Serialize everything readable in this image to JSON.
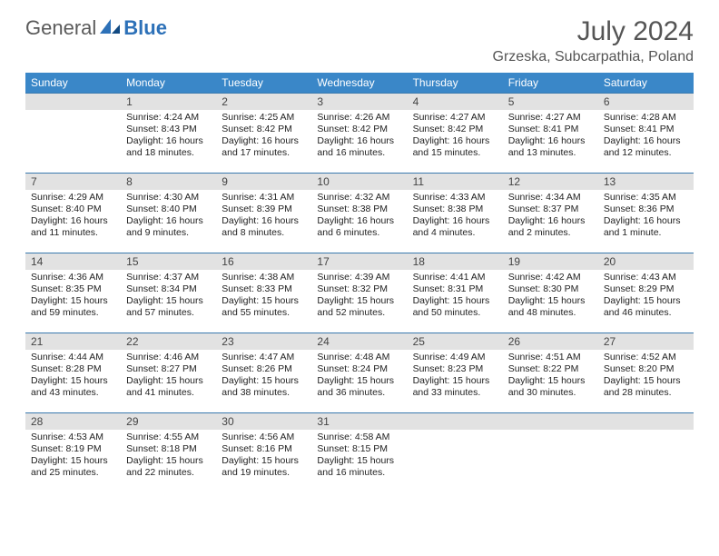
{
  "logo": {
    "general": "General",
    "blue": "Blue"
  },
  "title": "July 2024",
  "location": "Grzeska, Subcarpathia, Poland",
  "colors": {
    "header_bg": "#3a87c8",
    "header_fg": "#ffffff",
    "daynum_bg": "#e2e2e2",
    "row_divider": "#3a7aaf",
    "logo_blue": "#2d71b8",
    "text": "#222222"
  },
  "typography": {
    "title_size_pt": 22,
    "location_size_pt": 12,
    "weekday_size_pt": 9,
    "cell_size_pt": 8
  },
  "weekdays": [
    "Sunday",
    "Monday",
    "Tuesday",
    "Wednesday",
    "Thursday",
    "Friday",
    "Saturday"
  ],
  "weeks": [
    [
      null,
      {
        "n": "1",
        "sr": "4:24 AM",
        "ss": "8:43 PM",
        "dl": "16 hours and 18 minutes."
      },
      {
        "n": "2",
        "sr": "4:25 AM",
        "ss": "8:42 PM",
        "dl": "16 hours and 17 minutes."
      },
      {
        "n": "3",
        "sr": "4:26 AM",
        "ss": "8:42 PM",
        "dl": "16 hours and 16 minutes."
      },
      {
        "n": "4",
        "sr": "4:27 AM",
        "ss": "8:42 PM",
        "dl": "16 hours and 15 minutes."
      },
      {
        "n": "5",
        "sr": "4:27 AM",
        "ss": "8:41 PM",
        "dl": "16 hours and 13 minutes."
      },
      {
        "n": "6",
        "sr": "4:28 AM",
        "ss": "8:41 PM",
        "dl": "16 hours and 12 minutes."
      }
    ],
    [
      {
        "n": "7",
        "sr": "4:29 AM",
        "ss": "8:40 PM",
        "dl": "16 hours and 11 minutes."
      },
      {
        "n": "8",
        "sr": "4:30 AM",
        "ss": "8:40 PM",
        "dl": "16 hours and 9 minutes."
      },
      {
        "n": "9",
        "sr": "4:31 AM",
        "ss": "8:39 PM",
        "dl": "16 hours and 8 minutes."
      },
      {
        "n": "10",
        "sr": "4:32 AM",
        "ss": "8:38 PM",
        "dl": "16 hours and 6 minutes."
      },
      {
        "n": "11",
        "sr": "4:33 AM",
        "ss": "8:38 PM",
        "dl": "16 hours and 4 minutes."
      },
      {
        "n": "12",
        "sr": "4:34 AM",
        "ss": "8:37 PM",
        "dl": "16 hours and 2 minutes."
      },
      {
        "n": "13",
        "sr": "4:35 AM",
        "ss": "8:36 PM",
        "dl": "16 hours and 1 minute."
      }
    ],
    [
      {
        "n": "14",
        "sr": "4:36 AM",
        "ss": "8:35 PM",
        "dl": "15 hours and 59 minutes."
      },
      {
        "n": "15",
        "sr": "4:37 AM",
        "ss": "8:34 PM",
        "dl": "15 hours and 57 minutes."
      },
      {
        "n": "16",
        "sr": "4:38 AM",
        "ss": "8:33 PM",
        "dl": "15 hours and 55 minutes."
      },
      {
        "n": "17",
        "sr": "4:39 AM",
        "ss": "8:32 PM",
        "dl": "15 hours and 52 minutes."
      },
      {
        "n": "18",
        "sr": "4:41 AM",
        "ss": "8:31 PM",
        "dl": "15 hours and 50 minutes."
      },
      {
        "n": "19",
        "sr": "4:42 AM",
        "ss": "8:30 PM",
        "dl": "15 hours and 48 minutes."
      },
      {
        "n": "20",
        "sr": "4:43 AM",
        "ss": "8:29 PM",
        "dl": "15 hours and 46 minutes."
      }
    ],
    [
      {
        "n": "21",
        "sr": "4:44 AM",
        "ss": "8:28 PM",
        "dl": "15 hours and 43 minutes."
      },
      {
        "n": "22",
        "sr": "4:46 AM",
        "ss": "8:27 PM",
        "dl": "15 hours and 41 minutes."
      },
      {
        "n": "23",
        "sr": "4:47 AM",
        "ss": "8:26 PM",
        "dl": "15 hours and 38 minutes."
      },
      {
        "n": "24",
        "sr": "4:48 AM",
        "ss": "8:24 PM",
        "dl": "15 hours and 36 minutes."
      },
      {
        "n": "25",
        "sr": "4:49 AM",
        "ss": "8:23 PM",
        "dl": "15 hours and 33 minutes."
      },
      {
        "n": "26",
        "sr": "4:51 AM",
        "ss": "8:22 PM",
        "dl": "15 hours and 30 minutes."
      },
      {
        "n": "27",
        "sr": "4:52 AM",
        "ss": "8:20 PM",
        "dl": "15 hours and 28 minutes."
      }
    ],
    [
      {
        "n": "28",
        "sr": "4:53 AM",
        "ss": "8:19 PM",
        "dl": "15 hours and 25 minutes."
      },
      {
        "n": "29",
        "sr": "4:55 AM",
        "ss": "8:18 PM",
        "dl": "15 hours and 22 minutes."
      },
      {
        "n": "30",
        "sr": "4:56 AM",
        "ss": "8:16 PM",
        "dl": "15 hours and 19 minutes."
      },
      {
        "n": "31",
        "sr": "4:58 AM",
        "ss": "8:15 PM",
        "dl": "15 hours and 16 minutes."
      },
      null,
      null,
      null
    ]
  ],
  "labels": {
    "sunrise": "Sunrise: ",
    "sunset": "Sunset: ",
    "daylight": "Daylight: "
  }
}
